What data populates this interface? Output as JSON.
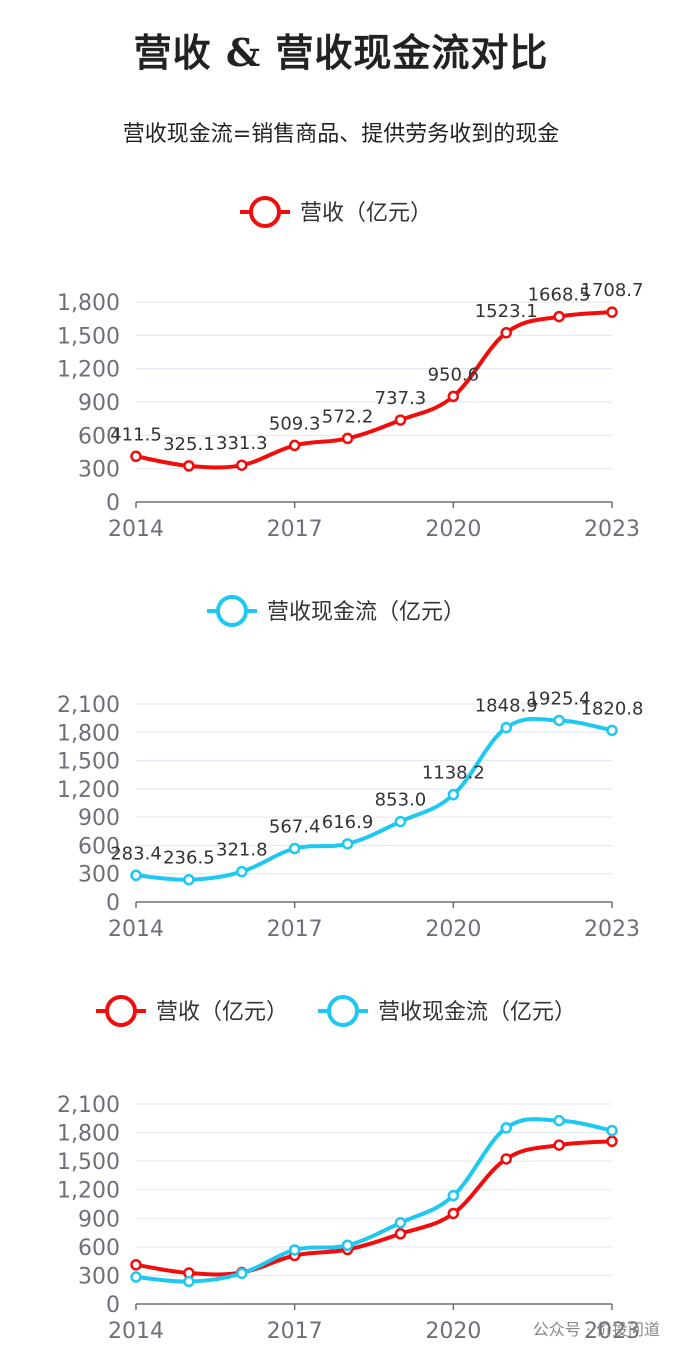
{
  "title": "营收 & 营收现金流对比",
  "subtitle": "营收现金流=销售商品、提供劳务收到的现金",
  "watermark": "公众号 · 价投问道",
  "colors": {
    "revenue": "#f20d0d",
    "cashflow": "#1ec8f0"
  },
  "chart_data": [
    {
      "type": "line",
      "legend": [
        "营收（亿元）"
      ],
      "x": [
        2014,
        2015,
        2016,
        2017,
        2018,
        2019,
        2020,
        2021,
        2022,
        2023
      ],
      "xticks": [
        "2014",
        "2017",
        "2020",
        "2023"
      ],
      "yticks": [
        "0",
        "300",
        "600",
        "900",
        "1,200",
        "1,500",
        "1,800"
      ],
      "ylim": [
        0,
        1900
      ],
      "series": [
        {
          "name": "营收（亿元）",
          "values": [
            411.5,
            325.1,
            331.3,
            509.3,
            572.2,
            737.3,
            950.6,
            1523.1,
            1668.5,
            1708.7
          ],
          "labels": [
            "411.5",
            "325.1",
            "331.3",
            "509.3",
            "572.2",
            "737.3",
            "950.6",
            "1523.1",
            "1668.5",
            "1708.7"
          ]
        }
      ],
      "data_labels": true
    },
    {
      "type": "line",
      "legend": [
        "营收现金流（亿元）"
      ],
      "x": [
        2014,
        2015,
        2016,
        2017,
        2018,
        2019,
        2020,
        2021,
        2022,
        2023
      ],
      "xticks": [
        "2014",
        "2017",
        "2020",
        "2023"
      ],
      "yticks": [
        "0",
        "300",
        "600",
        "900",
        "1,200",
        "1,500",
        "1,800",
        "2,100"
      ],
      "ylim": [
        0,
        2100
      ],
      "series": [
        {
          "name": "营收现金流（亿元）",
          "values": [
            283.4,
            236.5,
            321.8,
            567.4,
            616.9,
            853.0,
            1138.2,
            1848.9,
            1925.4,
            1820.8
          ],
          "labels": [
            "283.4",
            "236.5",
            "321.8",
            "567.4",
            "616.9",
            "853.0",
            "1138.2",
            "1848.9",
            "1925.4",
            "1820.8"
          ]
        }
      ],
      "data_labels": true
    },
    {
      "type": "line",
      "legend": [
        "营收（亿元）",
        "营收现金流（亿元）"
      ],
      "x": [
        2014,
        2015,
        2016,
        2017,
        2018,
        2019,
        2020,
        2021,
        2022,
        2023
      ],
      "xticks": [
        "2014",
        "2017",
        "2020",
        "2023"
      ],
      "yticks": [
        "0",
        "300",
        "600",
        "900",
        "1,200",
        "1,500",
        "1,800",
        "2,100"
      ],
      "ylim": [
        0,
        2100
      ],
      "series": [
        {
          "name": "营收（亿元）",
          "values": [
            411.5,
            325.1,
            331.3,
            509.3,
            572.2,
            737.3,
            950.6,
            1523.1,
            1668.5,
            1708.7
          ]
        },
        {
          "name": "营收现金流（亿元）",
          "values": [
            283.4,
            236.5,
            321.8,
            567.4,
            616.9,
            853.0,
            1138.2,
            1848.9,
            1925.4,
            1820.8
          ]
        }
      ],
      "data_labels": false
    }
  ]
}
